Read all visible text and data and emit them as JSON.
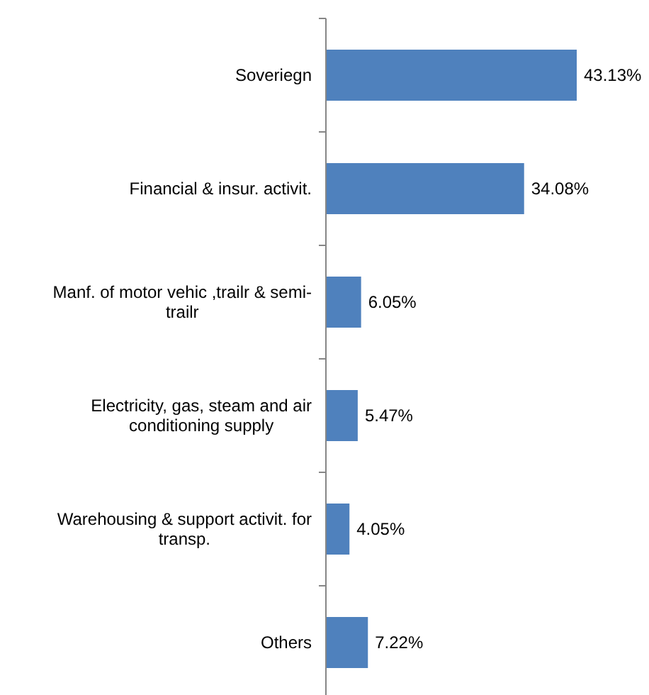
{
  "chart_data": {
    "type": "bar",
    "orientation": "horizontal",
    "categories": [
      "Soveriegn",
      "Financial & insur. activit.",
      "Manf. of motor vehic ,trailr & semi-trailr",
      "Electricity, gas, steam and air conditioning supply",
      "Warehousing & support activit. for transp.",
      "Others"
    ],
    "values": [
      43.13,
      34.08,
      6.05,
      5.47,
      4.05,
      7.22
    ],
    "value_labels": [
      "43.13%",
      "34.08%",
      "6.05%",
      "5.47%",
      "4.05%",
      "7.22%"
    ],
    "color": "#4f81bd"
  }
}
